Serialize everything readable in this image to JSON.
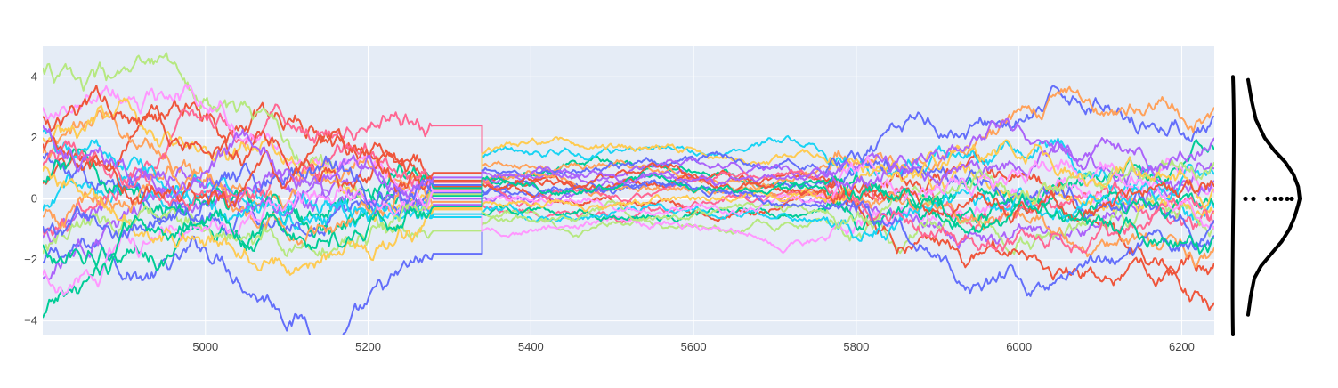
{
  "chart_data": [
    {
      "type": "line",
      "title": "",
      "xlabel": "",
      "ylabel": "",
      "xlim": [
        4800,
        6240
      ],
      "ylim": [
        -4.45,
        5.0
      ],
      "x_ticks": [
        5000,
        5200,
        5400,
        5600,
        5800,
        6000,
        6200
      ],
      "y_ticks": [
        -4,
        -2,
        0,
        2,
        4
      ],
      "grid": true,
      "legend": "none",
      "plot_background": "#e5ecf6",
      "x_range_approx": [
        4800,
        6240
      ],
      "series_count": 24,
      "palette": [
        "#636efa",
        "#ef553b",
        "#00cc96",
        "#ab63fa",
        "#ffa15a",
        "#19d3f3",
        "#ff6692",
        "#b6e880",
        "#ff97ff",
        "#fecb52"
      ],
      "flat_gaps": [
        [
          5280,
          5340
        ],
        [
          5340,
          5760
        ]
      ],
      "series": [
        {
          "color": "#636efa",
          "start": -2.1,
          "gap1": -1.8,
          "gap2": 0.5,
          "end": 2.7
        },
        {
          "color": "#ef553b",
          "start": 0.5,
          "gap1": 0.4,
          "gap2": 0.3,
          "end": -3.4
        },
        {
          "color": "#00cc96",
          "start": -3.9,
          "gap1": 0.1,
          "gap2": 0.4,
          "end": 1.6
        },
        {
          "color": "#ab63fa",
          "start": -1.3,
          "gap1": -0.2,
          "gap2": -0.1,
          "end": 1.0
        },
        {
          "color": "#ffa15a",
          "start": 1.5,
          "gap1": 0.3,
          "gap2": 1.1,
          "end": 3.0
        },
        {
          "color": "#19d3f3",
          "start": -0.4,
          "gap1": -0.6,
          "gap2": 1.5,
          "end": -0.3
        },
        {
          "color": "#ff6692",
          "start": -1.0,
          "gap1": 2.4,
          "gap2": 0.0,
          "end": -0.8
        },
        {
          "color": "#b6e880",
          "start": 4.3,
          "gap1": -1.05,
          "gap2": -0.6,
          "end": -0.9
        },
        {
          "color": "#ff97ff",
          "start": 3.0,
          "gap1": 0.2,
          "gap2": -1.3,
          "end": 0.2
        },
        {
          "color": "#fecb52",
          "start": 2.0,
          "gap1": -0.3,
          "gap2": 1.35,
          "end": -0.5
        },
        {
          "color": "#636efa",
          "start": 1.4,
          "gap1": 0.2,
          "gap2": 0.9,
          "end": -1.2
        },
        {
          "color": "#ef553b",
          "start": 2.7,
          "gap1": 0.85,
          "gap2": 0.7,
          "end": -2.1
        },
        {
          "color": "#00cc96",
          "start": 0.6,
          "gap1": 0.35,
          "gap2": -0.3,
          "end": -0.2
        },
        {
          "color": "#ab63fa",
          "start": -2.6,
          "gap1": 0.0,
          "gap2": 0.8,
          "end": 0.6
        },
        {
          "color": "#ffa15a",
          "start": -0.6,
          "gap1": -0.1,
          "gap2": 0.2,
          "end": -1.6
        },
        {
          "color": "#19d3f3",
          "start": 2.2,
          "gap1": -0.5,
          "gap2": -0.6,
          "end": 0.8
        },
        {
          "color": "#ff6692",
          "start": 1.1,
          "gap1": 0.55,
          "gap2": 0.55,
          "end": -0.4
        },
        {
          "color": "#b6e880",
          "start": -1.8,
          "gap1": 0.15,
          "gap2": -0.4,
          "end": 1.2
        },
        {
          "color": "#ff97ff",
          "start": -2.5,
          "gap1": 0.25,
          "gap2": 0.1,
          "end": -1.0
        },
        {
          "color": "#fecb52",
          "start": 0.9,
          "gap1": -0.35,
          "gap2": 0.0,
          "end": 0.3
        },
        {
          "color": "#636efa",
          "start": -0.9,
          "gap1": 0.45,
          "gap2": -0.2,
          "end": -0.7
        },
        {
          "color": "#ef553b",
          "start": 1.8,
          "gap1": 0.6,
          "gap2": 0.25,
          "end": 0.4
        },
        {
          "color": "#00cc96",
          "start": -1.5,
          "gap1": -0.25,
          "gap2": 0.6,
          "end": -1.3
        },
        {
          "color": "#ab63fa",
          "start": 2.4,
          "gap1": 0.7,
          "gap2": 0.9,
          "end": 2.0
        }
      ]
    },
    {
      "type": "area",
      "title": "",
      "orientation": "vertical",
      "line_color": "#000000",
      "description_values": {
        "support_y": [
          -4.45,
          4.0
        ],
        "peak_y": 0.0,
        "box_dot_positions_y": [
          0.0
        ],
        "box_dot_count": 8,
        "half_violin_profile": [
          [
            -3.8,
            0.0
          ],
          [
            -3.2,
            0.05
          ],
          [
            -2.6,
            0.12
          ],
          [
            -2.2,
            0.25
          ],
          [
            -1.8,
            0.45
          ],
          [
            -1.4,
            0.65
          ],
          [
            -1.0,
            0.8
          ],
          [
            -0.6,
            0.9
          ],
          [
            -0.2,
            0.97
          ],
          [
            0.0,
            1.0
          ],
          [
            0.4,
            0.97
          ],
          [
            0.8,
            0.88
          ],
          [
            1.2,
            0.72
          ],
          [
            1.6,
            0.5
          ],
          [
            2.0,
            0.32
          ],
          [
            2.6,
            0.15
          ],
          [
            3.2,
            0.07
          ],
          [
            3.9,
            0.0
          ]
        ]
      }
    }
  ]
}
